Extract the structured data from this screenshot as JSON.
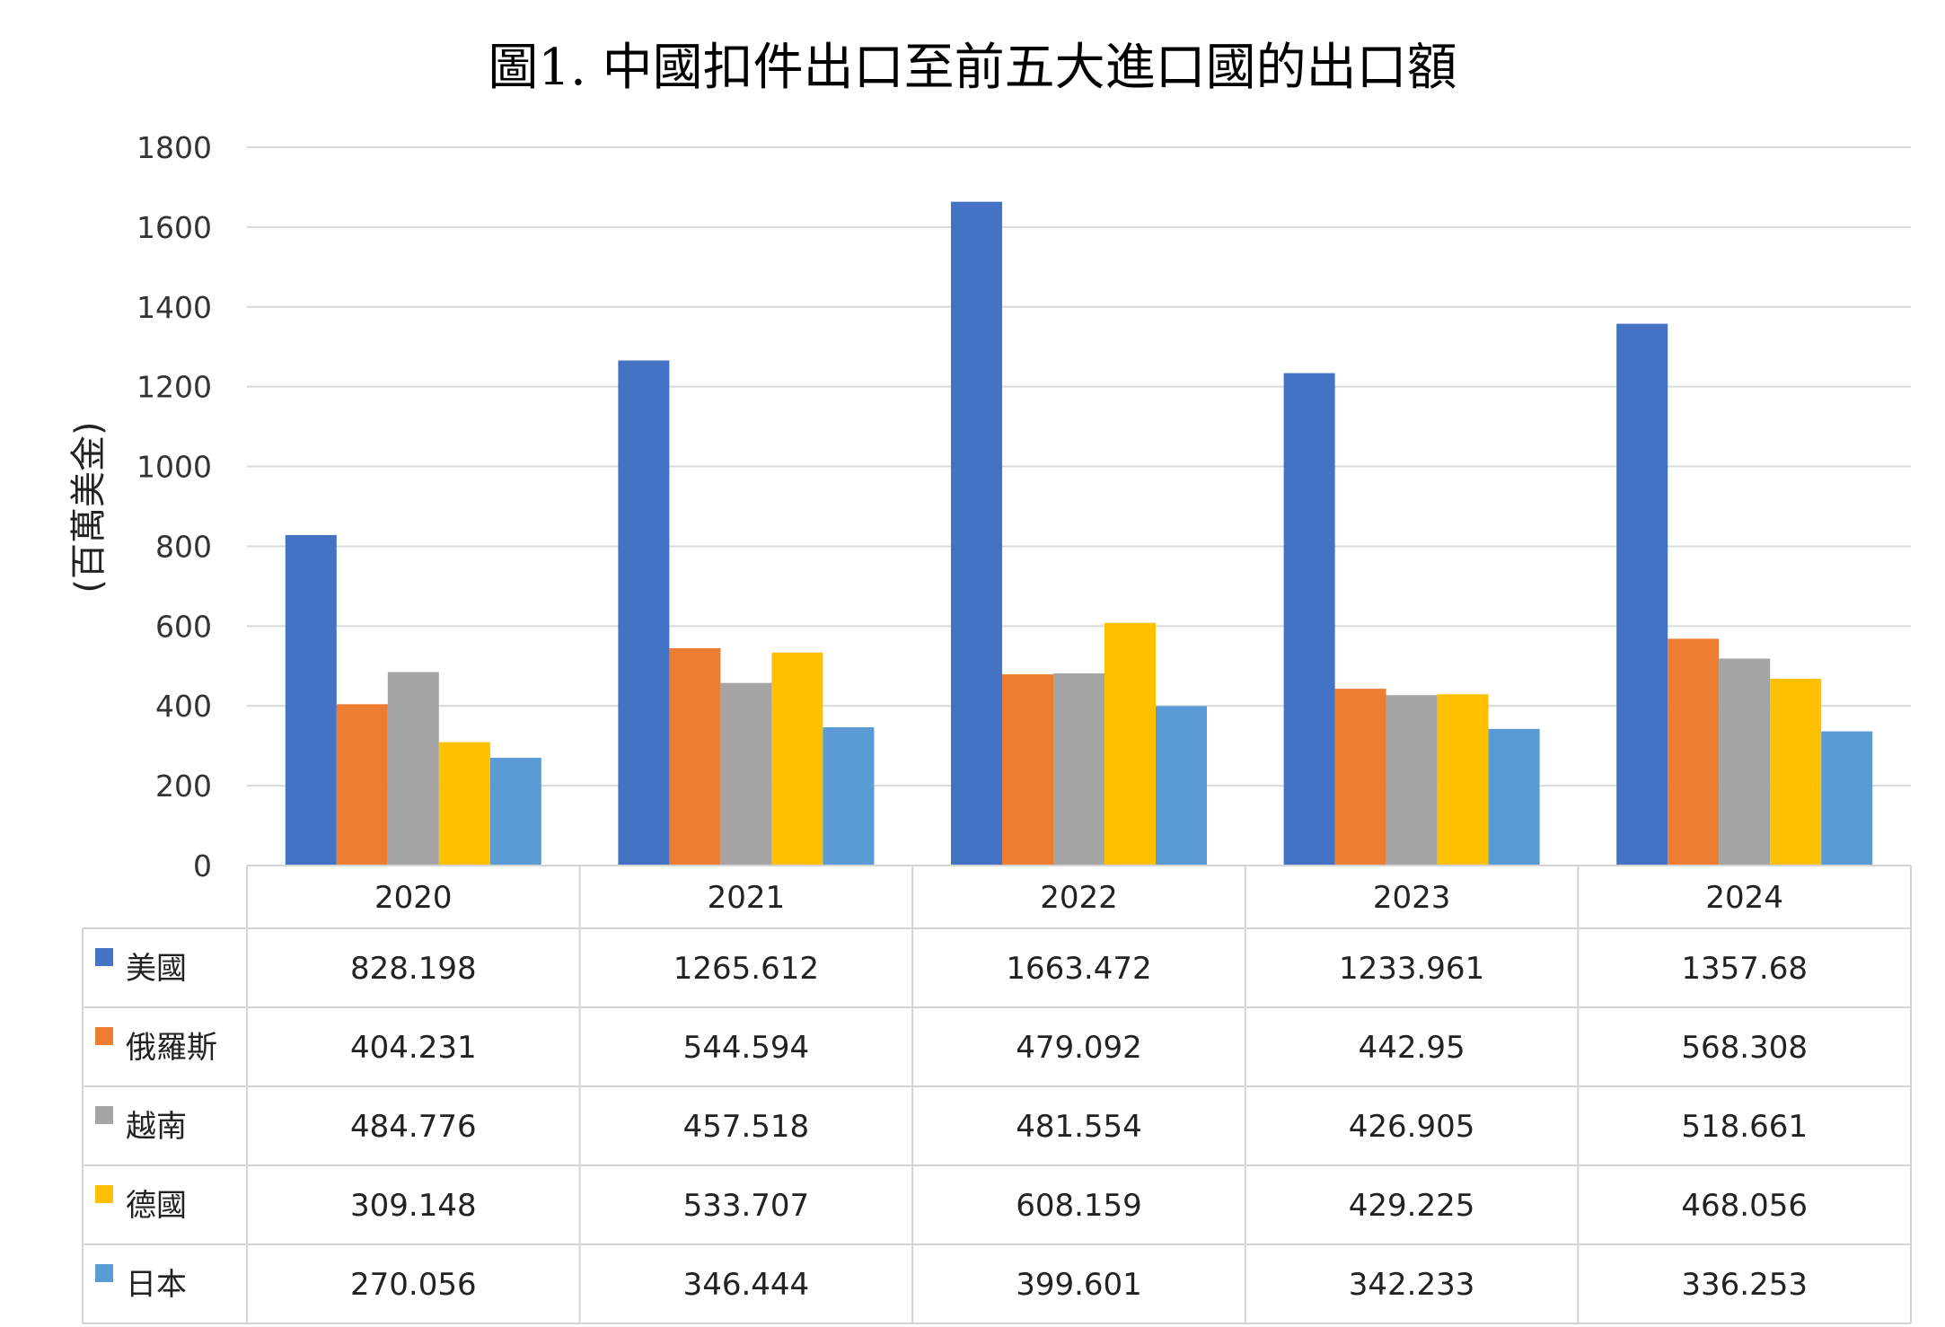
{
  "chart_data": {
    "type": "bar",
    "title": "圖1. 中國扣件出口至前五大進口國的出口額",
    "ylabel": "(百萬美金)",
    "xlabel": "",
    "categories": [
      "2020",
      "2021",
      "2022",
      "2023",
      "2024"
    ],
    "ylim": [
      0,
      1800
    ],
    "yticks": [
      0,
      200,
      400,
      600,
      800,
      1000,
      1200,
      1400,
      1600,
      1800
    ],
    "grid": true,
    "legend": "data-table",
    "series": [
      {
        "name": "美國",
        "color": "#4472C4",
        "values": [
          828.198,
          1265.612,
          1663.472,
          1233.961,
          1357.68
        ],
        "labels": [
          "828.198",
          "1265.612",
          "1663.472",
          "1233.961",
          "1357.68"
        ]
      },
      {
        "name": "俄羅斯",
        "color": "#ED7D31",
        "values": [
          404.231,
          544.594,
          479.092,
          442.95,
          568.308
        ],
        "labels": [
          "404.231",
          "544.594",
          "479.092",
          "442.95",
          "568.308"
        ]
      },
      {
        "name": "越南",
        "color": "#A5A5A5",
        "values": [
          484.776,
          457.518,
          481.554,
          426.905,
          518.661
        ],
        "labels": [
          "484.776",
          "457.518",
          "481.554",
          "426.905",
          "518.661"
        ]
      },
      {
        "name": "德國",
        "color": "#FFC000",
        "values": [
          309.148,
          533.707,
          608.159,
          429.225,
          468.056
        ],
        "labels": [
          "309.148",
          "533.707",
          "608.159",
          "429.225",
          "468.056"
        ]
      },
      {
        "name": "日本",
        "color": "#5B9BD5",
        "values": [
          270.056,
          346.444,
          399.601,
          342.233,
          336.253
        ],
        "labels": [
          "270.056",
          "346.444",
          "399.601",
          "342.233",
          "336.253"
        ]
      }
    ]
  }
}
